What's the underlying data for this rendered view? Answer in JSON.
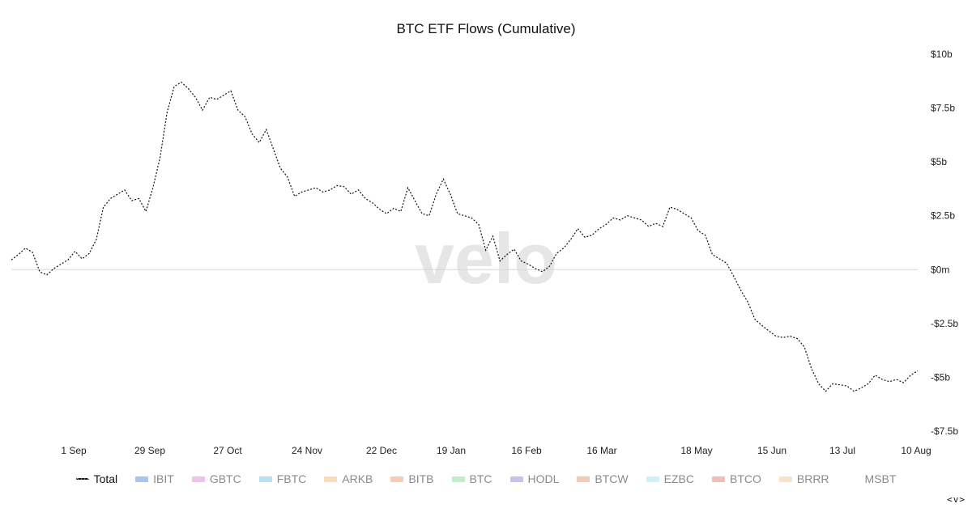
{
  "chart_data": {
    "type": "line",
    "title": "BTC ETF Flows (Cumulative)",
    "watermark": "velo",
    "x_tick_labels": [
      "1 Sep",
      "29 Sep",
      "27 Oct",
      "24 Nov",
      "22 Dec",
      "19 Jan",
      "16 Feb",
      "16 Mar",
      "18 May",
      "15 Jun",
      "13 Jul",
      "10 Aug"
    ],
    "y_tick_labels": [
      "$10b",
      "$7.5b",
      "$5b",
      "$2.5b",
      "$0m",
      "-$2.5b",
      "-$5b",
      "-$7.5b"
    ],
    "y_tick_values": [
      10,
      7.5,
      5,
      2.5,
      0,
      -2.5,
      -5,
      -7.5
    ],
    "ylim": [
      -7.5,
      10
    ],
    "y_unit": "billion USD",
    "zero_line": true,
    "grid": false,
    "series": [
      {
        "name": "Total",
        "style": "dotted",
        "color": "#111111",
        "values": [
          0.45,
          0.7,
          1.0,
          0.8,
          -0.1,
          -0.25,
          0.05,
          0.25,
          0.45,
          0.85,
          0.5,
          0.75,
          1.4,
          2.9,
          3.3,
          3.5,
          3.7,
          3.2,
          3.3,
          2.7,
          3.8,
          5.2,
          7.3,
          8.5,
          8.7,
          8.4,
          8.0,
          7.4,
          8.0,
          7.9,
          8.1,
          8.3,
          7.4,
          7.1,
          6.3,
          5.9,
          6.5,
          5.6,
          4.7,
          4.3,
          3.4,
          3.6,
          3.7,
          3.8,
          3.6,
          3.7,
          3.9,
          3.85,
          3.5,
          3.7,
          3.3,
          3.1,
          2.8,
          2.6,
          2.85,
          2.7,
          3.8,
          3.2,
          2.6,
          2.5,
          3.5,
          4.2,
          3.5,
          2.6,
          2.5,
          2.4,
          2.1,
          0.9,
          1.55,
          0.4,
          0.7,
          0.95,
          0.4,
          0.25,
          0.05,
          -0.1,
          0.15,
          0.75,
          1.0,
          1.4,
          1.9,
          1.5,
          1.6,
          1.9,
          2.1,
          2.4,
          2.3,
          2.5,
          2.4,
          2.3,
          2.0,
          2.15,
          2.0,
          2.9,
          2.8,
          2.6,
          2.4,
          1.8,
          1.6,
          0.7,
          0.5,
          0.3,
          -0.3,
          -0.95,
          -1.5,
          -2.3,
          -2.6,
          -2.85,
          -3.1,
          -3.15,
          -3.1,
          -3.2,
          -3.6,
          -4.6,
          -5.3,
          -5.65,
          -5.3,
          -5.35,
          -5.4,
          -5.65,
          -5.5,
          -5.3,
          -4.9,
          -5.1,
          -5.2,
          -5.1,
          -5.25,
          -4.9,
          -4.7
        ]
      }
    ]
  },
  "legend": [
    {
      "label": "Total",
      "color": "#111111",
      "style": "dotted"
    },
    {
      "label": "IBIT",
      "color": "#a9c3f4",
      "style": "swatch"
    },
    {
      "label": "GBTC",
      "color": "#f2c1f1",
      "style": "swatch"
    },
    {
      "label": "FBTC",
      "color": "#b7e0f2",
      "style": "swatch"
    },
    {
      "label": "ARKB",
      "color": "#fbdcbb",
      "style": "swatch"
    },
    {
      "label": "BITB",
      "color": "#f8cbb3",
      "style": "swatch"
    },
    {
      "label": "BTC",
      "color": "#bfeecd",
      "style": "swatch"
    },
    {
      "label": "HODL",
      "color": "#c6c3ef",
      "style": "swatch"
    },
    {
      "label": "BTCW",
      "color": "#f8c8b6",
      "style": "swatch"
    },
    {
      "label": "EZBC",
      "color": "#cdf1f5",
      "style": "swatch"
    },
    {
      "label": "BTCO",
      "color": "#f3bcbc",
      "style": "swatch"
    },
    {
      "label": "BRRR",
      "color": "#fbe1c7",
      "style": "swatch"
    },
    {
      "label": "MSBT",
      "color": "",
      "style": "none"
    }
  ],
  "corner_toggle": "<v>"
}
